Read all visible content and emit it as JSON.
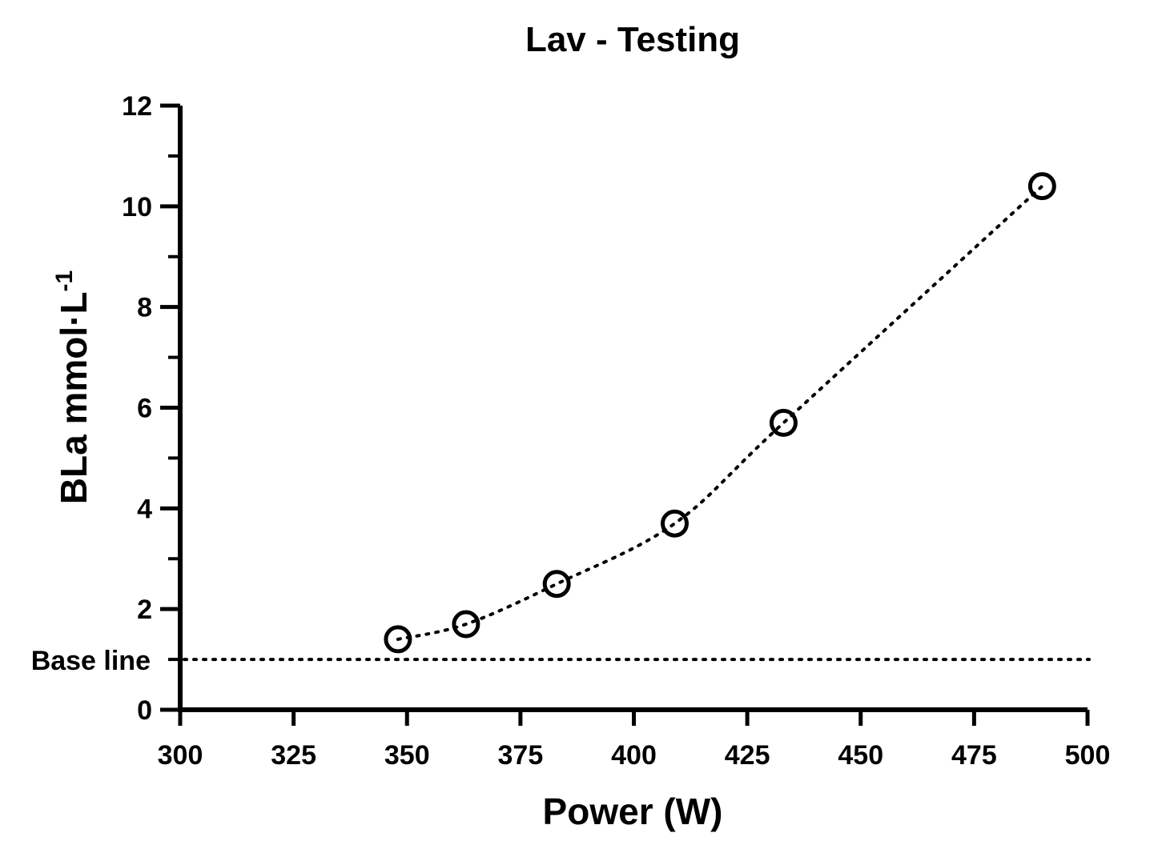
{
  "chart_data": {
    "type": "scatter",
    "title": "Lav - Testing",
    "xlabel": "Power (W)",
    "ylabel": {
      "main": "BLa mmol·L",
      "superscript": "-1"
    },
    "xlim": [
      300,
      500
    ],
    "ylim": [
      0,
      12
    ],
    "x_ticks": [
      300,
      325,
      350,
      375,
      400,
      425,
      450,
      475,
      500
    ],
    "y_ticks": [
      0,
      2,
      4,
      6,
      8,
      10,
      12
    ],
    "y_minor_ticks": [
      1,
      3,
      5,
      7,
      9,
      11
    ],
    "grid": false,
    "series": [
      {
        "points": [
          {
            "x": 348,
            "y": 1.4
          },
          {
            "x": 363,
            "y": 1.7
          },
          {
            "x": 383,
            "y": 2.5
          },
          {
            "x": 409,
            "y": 3.7
          },
          {
            "x": 433,
            "y": 5.7
          },
          {
            "x": 490,
            "y": 10.4
          }
        ],
        "marker": "open-circle",
        "fit_line": "dotted-curve"
      }
    ],
    "reference_lines": [
      {
        "label": "Base line",
        "y": 1,
        "style": "dotted"
      }
    ]
  }
}
